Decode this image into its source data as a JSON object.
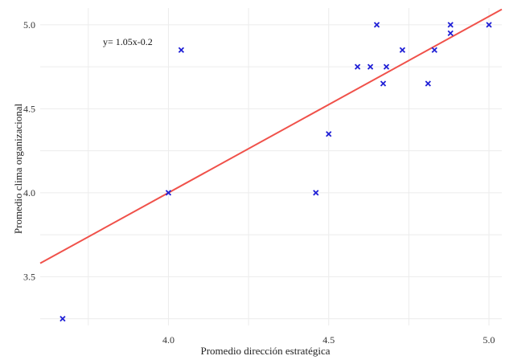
{
  "chart_data": {
    "type": "scatter",
    "title": "",
    "xlabel": "Promedio dirección estratégica",
    "ylabel": "Promedio clima organizacional",
    "xlim": [
      3.6,
      5.04
    ],
    "ylim": [
      3.21,
      5.1
    ],
    "grid": true,
    "x_ticks": [
      4.0,
      4.5,
      5.0
    ],
    "x_tick_labels": [
      "4.0",
      "4.5",
      "5.0"
    ],
    "y_ticks": [
      3.5,
      4.0,
      4.5,
      5.0
    ],
    "y_tick_labels": [
      "3.5",
      "4.0",
      "4.5",
      "5.0"
    ],
    "annotation": "y= 1.05x-0.2",
    "marker_color": "#1f1fd6",
    "line_color": "#f0514a",
    "fit_line": {
      "slope": 1.05,
      "intercept": -0.2
    },
    "points": [
      {
        "x": 3.67,
        "y": 3.25
      },
      {
        "x": 4.0,
        "y": 4.0
      },
      {
        "x": 4.04,
        "y": 4.85
      },
      {
        "x": 4.46,
        "y": 4.0
      },
      {
        "x": 4.5,
        "y": 4.35
      },
      {
        "x": 4.59,
        "y": 4.75
      },
      {
        "x": 4.63,
        "y": 4.75
      },
      {
        "x": 4.65,
        "y": 5.0
      },
      {
        "x": 4.67,
        "y": 4.65
      },
      {
        "x": 4.68,
        "y": 4.75
      },
      {
        "x": 4.73,
        "y": 4.85
      },
      {
        "x": 4.81,
        "y": 4.65
      },
      {
        "x": 4.83,
        "y": 4.85
      },
      {
        "x": 4.88,
        "y": 4.95
      },
      {
        "x": 4.88,
        "y": 5.0
      },
      {
        "x": 5.0,
        "y": 5.0
      }
    ]
  }
}
